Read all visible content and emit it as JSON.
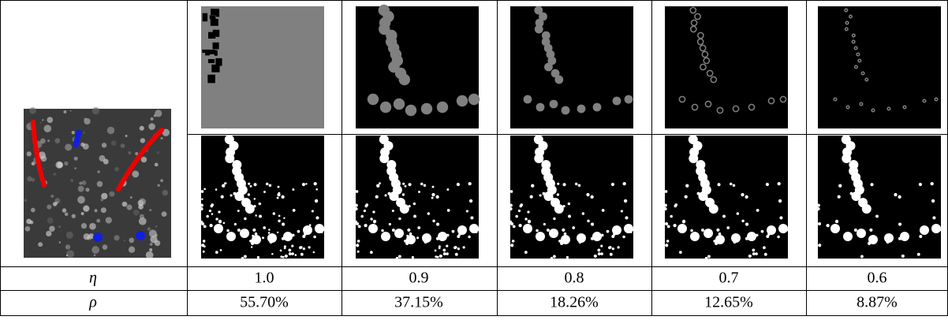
{
  "table": {
    "rows": [
      {
        "label": "η",
        "values": [
          "1.0",
          "0.9",
          "0.8",
          "0.7",
          "0.6"
        ]
      },
      {
        "label": "ρ",
        "values": [
          "55.70%",
          "37.15%",
          "18.26%",
          "12.65%",
          "8.87%"
        ]
      }
    ]
  }
}
